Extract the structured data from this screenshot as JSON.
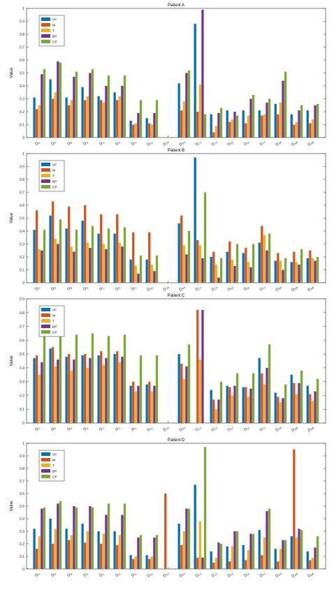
{
  "chart_data": [
    {
      "type": "bar",
      "title": "Patient A",
      "ylabel": "Value",
      "ylim": [
        0,
        1
      ],
      "yticks": [
        "0",
        "0.1",
        "0.2",
        "0.3",
        "0.4",
        "0.5",
        "0.6",
        "0.7",
        "0.8",
        "0.9",
        "1"
      ],
      "categories": [
        "D_H",
        "D_R",
        "D_B",
        "D_S",
        "D_C",
        "D_O",
        "D_G",
        "D_GL",
        "D_TR",
        "D_PS",
        "D_LU",
        "D_LS",
        "D_ST",
        "D_SI",
        "D_TT",
        "D_RR",
        "D_MD",
        "D_ME"
      ],
      "series": [
        {
          "name": "VF",
          "values": [
            0.31,
            0.45,
            0.31,
            0.39,
            0.32,
            0.35,
            0.13,
            0.15,
            0,
            0.42,
            0.88,
            0.18,
            0.21,
            0.21,
            0.21,
            0.26,
            0.18,
            0.21
          ]
        },
        {
          "name": "M",
          "values": [
            0.22,
            0.3,
            0.25,
            0.29,
            0.29,
            0.29,
            0.1,
            0.11,
            0,
            0.21,
            0.2,
            0.04,
            0.12,
            0.11,
            0.17,
            0.18,
            0.1,
            0.11
          ]
        },
        {
          "name": "T",
          "values": [
            0.25,
            0.35,
            0.29,
            0.32,
            0.27,
            0.32,
            0.11,
            0.1,
            0,
            0.28,
            0.41,
            0.09,
            0.14,
            0.17,
            0.18,
            0.27,
            0.12,
            0.14
          ]
        },
        {
          "name": "BP",
          "values": [
            0.49,
            0.59,
            0.47,
            0.5,
            0.4,
            0.4,
            0.19,
            0.19,
            0,
            0.5,
            0.99,
            0.19,
            0.2,
            0.3,
            0.27,
            0.44,
            0.21,
            0.25
          ]
        },
        {
          "name": "CP",
          "values": [
            0.53,
            0.58,
            0.51,
            0.53,
            0.48,
            0.48,
            0.29,
            0.29,
            0,
            0.52,
            0.18,
            0.23,
            0.17,
            0.33,
            0.3,
            0.51,
            0.25,
            0.26
          ]
        }
      ]
    },
    {
      "type": "bar",
      "title": "Patient B",
      "ylabel": "Value",
      "ylim": [
        0,
        1
      ],
      "yticks": [
        "0",
        "0.1",
        "0.2",
        "0.3",
        "0.4",
        "0.5",
        "0.6",
        "0.7",
        "0.8",
        "0.9",
        "1"
      ],
      "categories": [
        "D_H",
        "D_R",
        "D_B",
        "D_S",
        "D_C",
        "D_O",
        "D_G",
        "D_GL",
        "D_TR",
        "D_PS",
        "D_LU",
        "D_LS",
        "D_ST",
        "D_SI",
        "D_TT",
        "D_RR",
        "D_MD",
        "D_ME"
      ],
      "series": [
        {
          "name": "VF",
          "values": [
            0.41,
            0.52,
            0.42,
            0.48,
            0.38,
            0.38,
            0.18,
            0.18,
            0,
            0.46,
            0.97,
            0.2,
            0.24,
            0.23,
            0.31,
            0.17,
            0.16,
            0.19
          ]
        },
        {
          "name": "M",
          "values": [
            0.56,
            0.63,
            0.59,
            0.6,
            0.53,
            0.53,
            0.39,
            0.39,
            0,
            0.52,
            0.33,
            0.24,
            0.32,
            0.27,
            0.44,
            0.23,
            0.24,
            0.25
          ]
        },
        {
          "name": "T",
          "values": [
            0.26,
            0.34,
            0.28,
            0.31,
            0.3,
            0.31,
            0.13,
            0.14,
            0,
            0.29,
            0.29,
            0.14,
            0.18,
            0.16,
            0.37,
            0.17,
            0.16,
            0.19
          ]
        },
        {
          "name": "BP",
          "values": [
            0.25,
            0.3,
            0.24,
            0.27,
            0.26,
            0.28,
            0.07,
            0.09,
            0,
            0.22,
            0.19,
            0.04,
            0.13,
            0.12,
            0.25,
            0.1,
            0.14,
            0.17
          ]
        },
        {
          "name": "CP",
          "values": [
            0.41,
            0.49,
            0.41,
            0.44,
            0.42,
            0.43,
            0.21,
            0.21,
            0,
            0.4,
            0.7,
            0.19,
            0.3,
            0.3,
            0.38,
            0.19,
            0.26,
            0.2
          ]
        }
      ]
    },
    {
      "type": "bar",
      "title": "Patient C",
      "ylabel": "Value",
      "ylim": [
        0,
        0.9
      ],
      "yticks": [
        "0",
        "0.1",
        "0.2",
        "0.3",
        "0.4",
        "0.5",
        "0.6",
        "0.7",
        "0.8",
        "0.9"
      ],
      "categories": [
        "D_H",
        "D_R",
        "D_B",
        "D_S",
        "D_C",
        "D_O",
        "D_G",
        "D_GL",
        "D_TR",
        "D_PS",
        "D_LU",
        "D_LS",
        "D_ST",
        "D_SI",
        "D_TT",
        "D_RR",
        "D_MD",
        "D_ME"
      ],
      "series": [
        {
          "name": "VF",
          "values": [
            0.47,
            0.54,
            0.48,
            0.49,
            0.49,
            0.5,
            0.27,
            0.28,
            0,
            0.5,
            0,
            0.24,
            0.27,
            0.26,
            0.47,
            0.22,
            0.35,
            0.27
          ]
        },
        {
          "name": "M",
          "values": [
            0.49,
            0.55,
            0.5,
            0.5,
            0.52,
            0.52,
            0.3,
            0.3,
            0,
            0.43,
            0.82,
            0.17,
            0.26,
            0.26,
            0.36,
            0.19,
            0.29,
            0.21
          ]
        },
        {
          "name": "T",
          "values": [
            0.35,
            0.41,
            0.38,
            0.4,
            0.42,
            0.44,
            0.23,
            0.23,
            0,
            0.32,
            0.46,
            0.1,
            0.2,
            0.19,
            0.28,
            0.15,
            0.21,
            0.16
          ]
        },
        {
          "name": "BP",
          "values": [
            0.44,
            0.46,
            0.46,
            0.47,
            0.47,
            0.48,
            0.27,
            0.27,
            0,
            0.41,
            0.82,
            0.17,
            0.27,
            0.25,
            0.4,
            0.18,
            0.29,
            0.23
          ]
        },
        {
          "name": "CP",
          "values": [
            0.64,
            0.69,
            0.64,
            0.65,
            0.63,
            0.64,
            0.49,
            0.49,
            0,
            0.57,
            0,
            0.3,
            0.36,
            0.36,
            0.57,
            0.28,
            0.38,
            0.32
          ]
        }
      ]
    },
    {
      "type": "bar",
      "title": "Patient D",
      "ylabel": "Value",
      "ylim": [
        0,
        1
      ],
      "yticks": [
        "0",
        "0.1",
        "0.2",
        "0.3",
        "0.4",
        "0.5",
        "0.6",
        "0.7",
        "0.8",
        "0.9",
        "1"
      ],
      "categories": [
        "D_H",
        "D_R",
        "D_B",
        "D_S",
        "D_C",
        "D_O",
        "D_G",
        "D_GL",
        "D_TR",
        "D_PS",
        "D_LU",
        "D_LS",
        "D_ST",
        "D_SI",
        "D_TT",
        "D_RR",
        "D_MD",
        "D_ME"
      ],
      "series": [
        {
          "name": "VF",
          "values": [
            0.32,
            0.4,
            0.32,
            0.36,
            0.3,
            0.3,
            0.11,
            0.11,
            0,
            0.36,
            0.67,
            0.14,
            0.18,
            0.19,
            0.31,
            0.16,
            0.26,
            0.14
          ]
        },
        {
          "name": "M",
          "values": [
            0.16,
            0.2,
            0.23,
            0.21,
            0.2,
            0.19,
            0.08,
            0.08,
            0.6,
            0.19,
            0.09,
            0.05,
            0.06,
            0.07,
            0.11,
            0.06,
            0.95,
            0.07
          ]
        },
        {
          "name": "T",
          "values": [
            0.26,
            0.32,
            0.27,
            0.3,
            0.28,
            0.27,
            0.1,
            0.1,
            0,
            0.3,
            0.38,
            0.09,
            0.18,
            0.15,
            0.25,
            0.16,
            0.25,
            0.09
          ]
        },
        {
          "name": "BP",
          "values": [
            0.48,
            0.52,
            0.5,
            0.5,
            0.43,
            0.43,
            0.25,
            0.25,
            0,
            0.48,
            0.09,
            0.21,
            0.3,
            0.28,
            0.46,
            0.23,
            0.32,
            0.17
          ]
        },
        {
          "name": "CP",
          "values": [
            0.49,
            0.54,
            0.49,
            0.49,
            0.52,
            0.52,
            0.27,
            0.27,
            0,
            0.48,
            0.97,
            0.2,
            0.3,
            0.28,
            0.48,
            0.23,
            0.31,
            0.26
          ]
        }
      ]
    }
  ],
  "colors": {
    "VF": "#0072BD",
    "M": "#D95319",
    "T": "#EDB120",
    "BP": "#7E2F8E",
    "CP": "#77AC30"
  }
}
